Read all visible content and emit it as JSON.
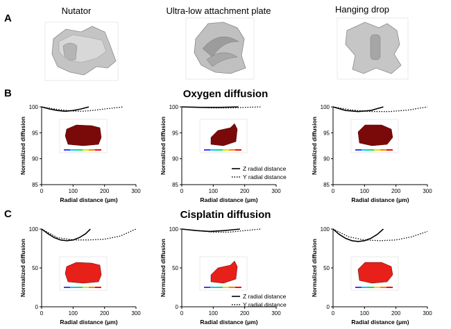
{
  "panels": {
    "a": "A",
    "b": "B",
    "c": "C"
  },
  "conditions": [
    "Nutator",
    "Ultra-low attachment plate",
    "Hanging drop"
  ],
  "rows": [
    {
      "title": "Oxygen diffusion"
    },
    {
      "title": "Cisplatin diffusion"
    }
  ],
  "legend": {
    "z": "Z radial distance",
    "y": "Y radial distance"
  },
  "colors": {
    "spheroid_oxygen": "#7a0a0a",
    "spheroid_cisplatin": "#e8201a",
    "render_gray": "#c8c8c8"
  },
  "chart_data": [
    {
      "type": "line",
      "ylim": [
        85,
        100
      ],
      "xlim": [
        0,
        300
      ],
      "yticks": [
        85,
        90,
        95,
        100
      ],
      "xticks": [
        0,
        100,
        200,
        300
      ],
      "xlabel": "Radial distance (μm)",
      "ylabel": "Normalized diffusion",
      "series": [
        {
          "name": "Z radial distance",
          "style": "solid",
          "x": [
            0,
            25,
            50,
            75,
            100,
            125,
            150
          ],
          "y": [
            100,
            99.6,
            99.3,
            99.15,
            99.3,
            99.6,
            100
          ]
        },
        {
          "name": "Y radial distance",
          "style": "dotted",
          "x": [
            0,
            50,
            100,
            130,
            160,
            200,
            260
          ],
          "y": [
            100,
            99.5,
            99.2,
            99.15,
            99.3,
            99.6,
            100
          ]
        }
      ]
    },
    {
      "type": "line",
      "ylim": [
        85,
        100
      ],
      "xlim": [
        0,
        300
      ],
      "yticks": [
        85,
        90,
        95,
        100
      ],
      "xticks": [
        0,
        100,
        200,
        300
      ],
      "xlabel": "Radial distance (μm)",
      "ylabel": "Normalized diffusion",
      "series": [
        {
          "name": "Z radial distance",
          "style": "solid",
          "x": [
            0,
            60,
            120,
            180
          ],
          "y": [
            100,
            99.9,
            99.9,
            100
          ]
        },
        {
          "name": "Y radial distance",
          "style": "dotted",
          "x": [
            0,
            50,
            100,
            150,
            200,
            250
          ],
          "y": [
            100,
            99.9,
            99.8,
            99.8,
            99.9,
            100
          ]
        }
      ]
    },
    {
      "type": "line",
      "ylim": [
        85,
        100
      ],
      "xlim": [
        0,
        300
      ],
      "yticks": [
        85,
        90,
        95,
        100
      ],
      "xticks": [
        0,
        100,
        200,
        300
      ],
      "xlabel": "Radial distance (μm)",
      "ylabel": "Normalized diffusion",
      "series": [
        {
          "name": "Z radial distance",
          "style": "solid",
          "x": [
            0,
            40,
            80,
            120,
            160
          ],
          "y": [
            100,
            99.3,
            99.1,
            99.3,
            100
          ]
        },
        {
          "name": "Y radial distance",
          "style": "dotted",
          "x": [
            0,
            60,
            120,
            180,
            240,
            300
          ],
          "y": [
            100,
            99.4,
            99.1,
            99.1,
            99.4,
            100
          ]
        }
      ]
    },
    {
      "type": "line",
      "ylim": [
        0,
        100
      ],
      "xlim": [
        0,
        300
      ],
      "yticks": [
        0,
        50,
        100
      ],
      "xticks": [
        0,
        100,
        200,
        300
      ],
      "xlabel": "Radial distance (μm)",
      "ylabel": "Normalized diffusion",
      "series": [
        {
          "name": "Z radial distance",
          "style": "solid",
          "x": [
            0,
            20,
            40,
            60,
            80,
            100,
            120,
            140,
            155
          ],
          "y": [
            100,
            94,
            89,
            86,
            85,
            86,
            89,
            94,
            100
          ]
        },
        {
          "name": "Y radial distance",
          "style": "dotted",
          "x": [
            0,
            50,
            100,
            150,
            200,
            250,
            300
          ],
          "y": [
            100,
            89,
            86,
            86,
            87,
            91,
            100
          ]
        }
      ]
    },
    {
      "type": "line",
      "ylim": [
        0,
        100
      ],
      "xlim": [
        0,
        300
      ],
      "yticks": [
        0,
        50,
        100
      ],
      "xticks": [
        0,
        100,
        200,
        300
      ],
      "xlabel": "Radial distance (μm)",
      "ylabel": "Normalized diffusion",
      "series": [
        {
          "name": "Z radial distance",
          "style": "solid",
          "x": [
            0,
            45,
            90,
            135,
            185
          ],
          "y": [
            100,
            98,
            97,
            98,
            100
          ]
        },
        {
          "name": "Y radial distance",
          "style": "dotted",
          "x": [
            0,
            50,
            100,
            150,
            200,
            250
          ],
          "y": [
            100,
            98,
            96,
            96,
            98,
            100
          ]
        }
      ]
    },
    {
      "type": "line",
      "ylim": [
        0,
        100
      ],
      "xlim": [
        0,
        300
      ],
      "yticks": [
        0,
        50,
        100
      ],
      "xticks": [
        0,
        100,
        200,
        300
      ],
      "xlabel": "Radial distance (μm)",
      "ylabel": "Normalized diffusion",
      "series": [
        {
          "name": "Z radial distance",
          "style": "solid",
          "x": [
            0,
            20,
            40,
            60,
            80,
            100,
            120,
            140,
            160
          ],
          "y": [
            100,
            93,
            88,
            85,
            84,
            85,
            88,
            93,
            100
          ]
        },
        {
          "name": "Y radial distance",
          "style": "dotted",
          "x": [
            0,
            50,
            100,
            150,
            200,
            250,
            300
          ],
          "y": [
            100,
            90,
            86,
            85,
            86,
            90,
            97
          ]
        }
      ]
    }
  ]
}
